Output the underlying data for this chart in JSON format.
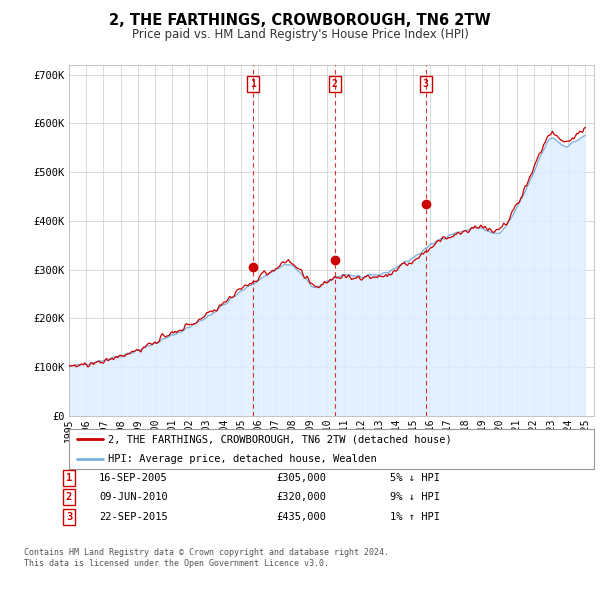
{
  "title": "2, THE FARTHINGS, CROWBOROUGH, TN6 2TW",
  "subtitle": "Price paid vs. HM Land Registry's House Price Index (HPI)",
  "legend_line1": "2, THE FARTHINGS, CROWBOROUGH, TN6 2TW (detached house)",
  "legend_line2": "HPI: Average price, detached house, Wealden",
  "price_color": "#cc0000",
  "hpi_color": "#7aaedc",
  "hpi_fill_color": "#ddeeff",
  "transactions": [
    {
      "num": 1,
      "date": "16-SEP-2005",
      "year": 2005.71,
      "price": 305000,
      "pct": "5%",
      "dir": "↓"
    },
    {
      "num": 2,
      "date": "09-JUN-2010",
      "year": 2010.44,
      "price": 320000,
      "pct": "9%",
      "dir": "↓"
    },
    {
      "num": 3,
      "date": "22-SEP-2015",
      "year": 2015.72,
      "price": 435000,
      "pct": "1%",
      "dir": "↑"
    }
  ],
  "yticks": [
    0,
    100000,
    200000,
    300000,
    400000,
    500000,
    600000,
    700000
  ],
  "ytick_labels": [
    "£0",
    "£100K",
    "£200K",
    "£300K",
    "£400K",
    "£500K",
    "£600K",
    "£700K"
  ],
  "xmin": 1995.0,
  "xmax": 2025.5,
  "ymin": 0,
  "ymax": 720000,
  "footer_line1": "Contains HM Land Registry data © Crown copyright and database right 2024.",
  "footer_line2": "This data is licensed under the Open Government Licence v3.0."
}
